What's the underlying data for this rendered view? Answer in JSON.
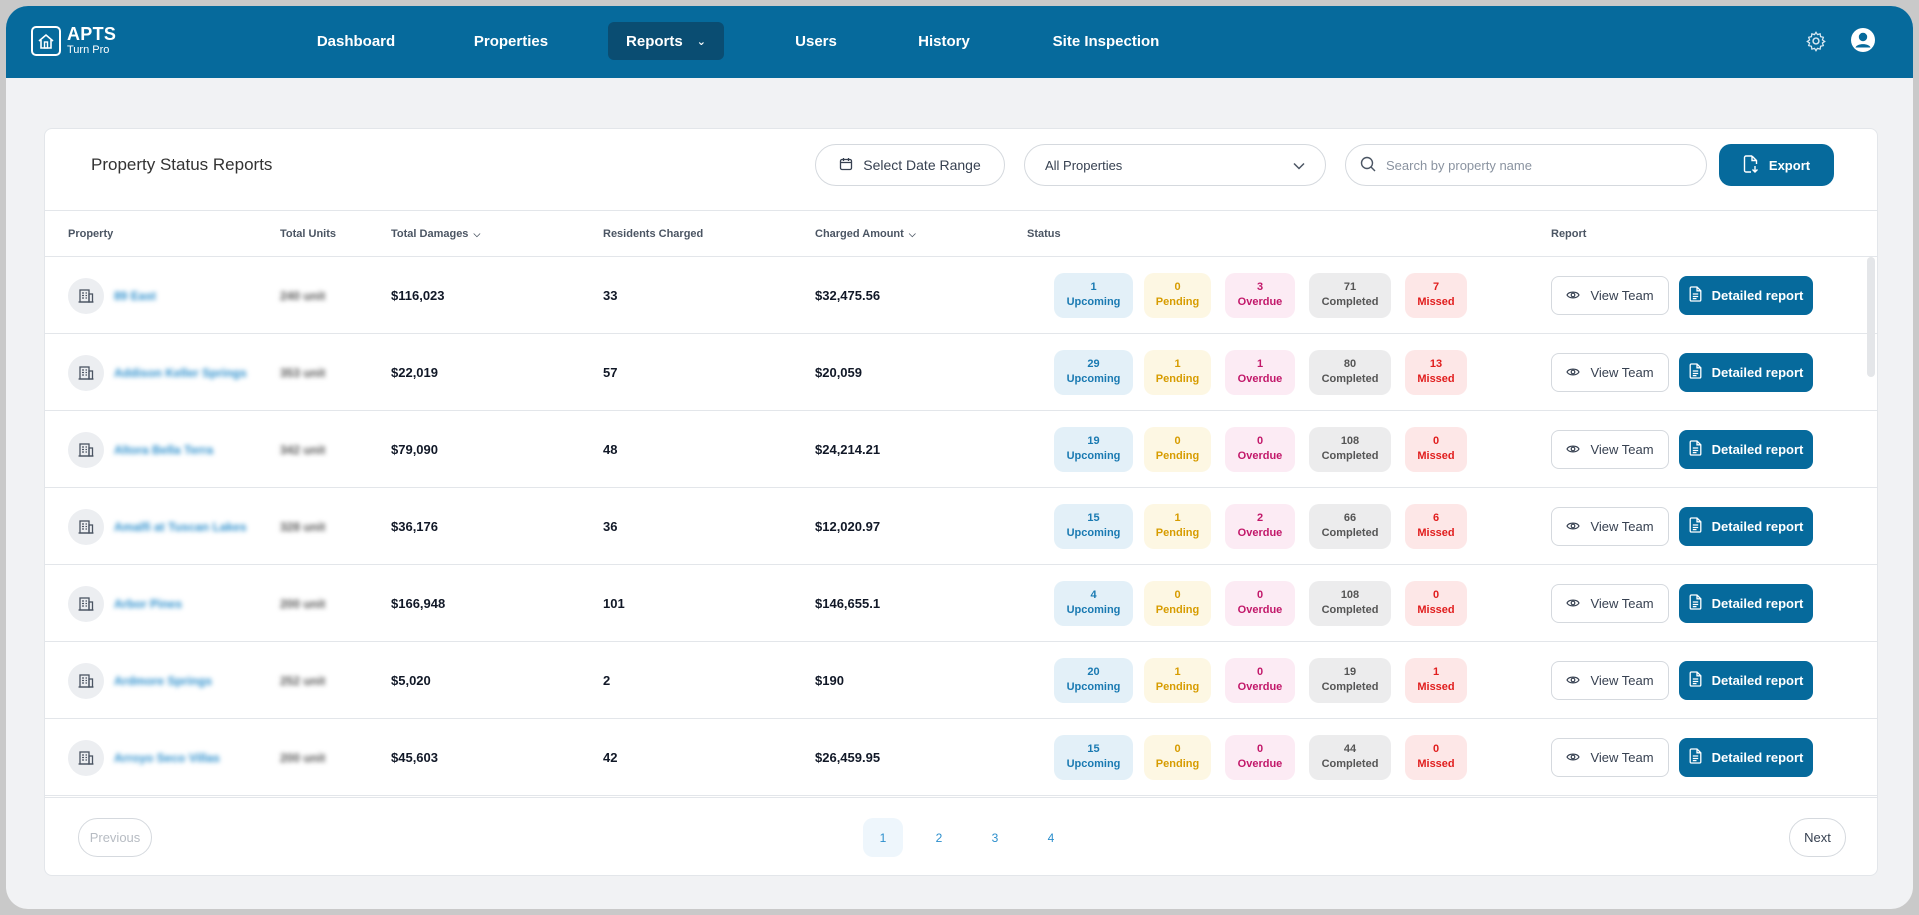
{
  "app": {
    "title": "APTS",
    "subtitle": "Turn Pro"
  },
  "nav": {
    "items": [
      {
        "label": "Dashboard",
        "active": false
      },
      {
        "label": "Properties",
        "active": false
      },
      {
        "label": "Reports",
        "active": true,
        "dropdown": true
      },
      {
        "label": "Users",
        "active": false
      },
      {
        "label": "History",
        "active": false
      },
      {
        "label": "Site Inspection",
        "active": false
      }
    ],
    "icons": [
      "settings-gear-icon",
      "user-account-icon"
    ]
  },
  "page": {
    "title": "Property Status Reports"
  },
  "filters": {
    "date_range_label": "Select Date Range",
    "property_select_value": "All Properties",
    "search_placeholder": "Search by property name",
    "export_label": "Export"
  },
  "table": {
    "columns": [
      "Property",
      "Total Units",
      "Total Damages",
      "Residents Charged",
      "Charged Amount",
      "Status",
      "Report"
    ],
    "rows": [
      {
        "property": "89 East",
        "units": "240 unit",
        "damages": "$116,023",
        "residents": "33",
        "amount": "$32,475.56",
        "upcoming": "1",
        "pending": "0",
        "overdue": "3",
        "completed": "71",
        "missed": "7"
      },
      {
        "property": "Addison Keller Springs",
        "units": "353 unit",
        "damages": "$22,019",
        "residents": "57",
        "amount": "$20,059",
        "upcoming": "29",
        "pending": "1",
        "overdue": "1",
        "completed": "80",
        "missed": "13"
      },
      {
        "property": "Altora Bella Terra",
        "units": "342 unit",
        "damages": "$79,090",
        "residents": "48",
        "amount": "$24,214.21",
        "upcoming": "19",
        "pending": "0",
        "overdue": "0",
        "completed": "108",
        "missed": "0"
      },
      {
        "property": "Amalfi at Tuscan Lakes",
        "units": "328 unit",
        "damages": "$36,176",
        "residents": "36",
        "amount": "$12,020.97",
        "upcoming": "15",
        "pending": "1",
        "overdue": "2",
        "completed": "66",
        "missed": "6"
      },
      {
        "property": "Arbor Pines",
        "units": "200 unit",
        "damages": "$166,948",
        "residents": "101",
        "amount": "$146,655.1",
        "upcoming": "4",
        "pending": "0",
        "overdue": "0",
        "completed": "108",
        "missed": "0"
      },
      {
        "property": "Ardmore Springs",
        "units": "252 unit",
        "damages": "$5,020",
        "residents": "2",
        "amount": "$190",
        "upcoming": "20",
        "pending": "1",
        "overdue": "0",
        "completed": "19",
        "missed": "1"
      },
      {
        "property": "Arroyo Seco Villas",
        "units": "200 unit",
        "damages": "$45,603",
        "residents": "42",
        "amount": "$26,459.95",
        "upcoming": "15",
        "pending": "0",
        "overdue": "0",
        "completed": "44",
        "missed": "0"
      }
    ],
    "status_labels": {
      "upcoming": "Upcoming",
      "pending": "Pending",
      "overdue": "Overdue",
      "completed": "Completed",
      "missed": "Missed"
    },
    "view_team_label": "View Team",
    "detailed_report_label": "Detailed report"
  },
  "pagination": {
    "previous": "Previous",
    "next": "Next",
    "pages": [
      "1",
      "2",
      "3",
      "4"
    ],
    "current": "1"
  },
  "colors": {
    "brand": "#066a9c",
    "brand_dark": "#0a4d72",
    "upcoming": "#1a7ab2",
    "pending": "#d79c00",
    "overdue": "#c2186a",
    "completed": "#555555",
    "missed": "#e11d1d"
  }
}
